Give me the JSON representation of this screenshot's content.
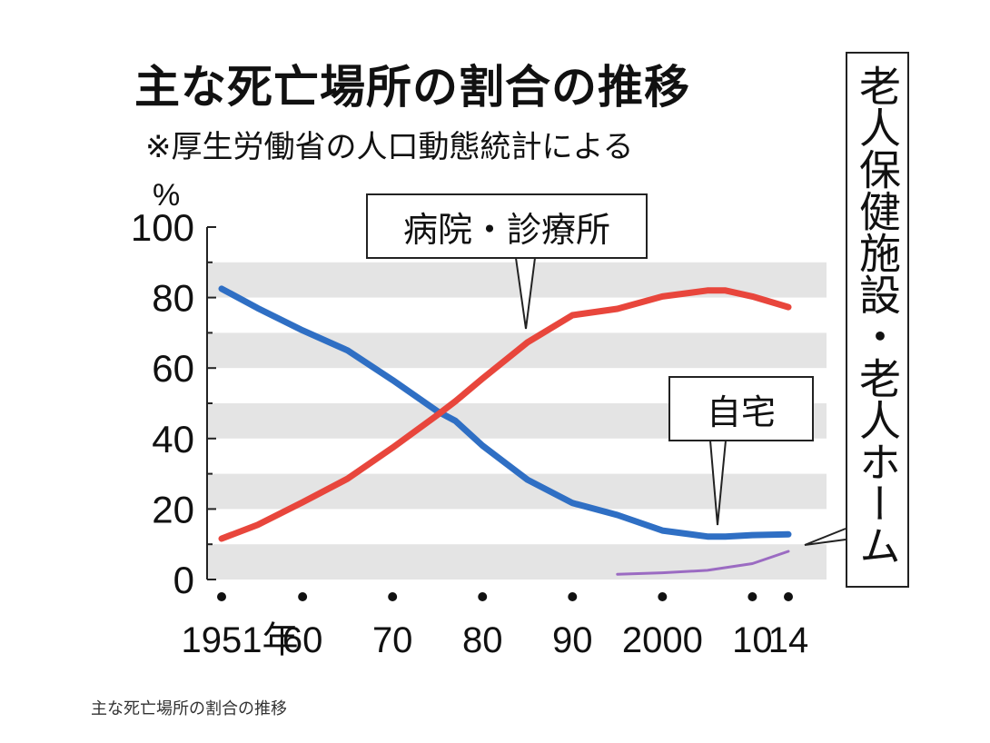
{
  "title": "主な死亡場所の割合の推移",
  "subtitle": "※厚生労働省の人口動態統計による",
  "caption": "主な死亡場所の割合の推移",
  "chart_data": {
    "type": "line",
    "ylabel": "%",
    "ylim": [
      0,
      100
    ],
    "y_ticks": [
      "0",
      "20",
      "40",
      "60",
      "80",
      "100"
    ],
    "x_range": [
      1951,
      2014
    ],
    "x_ticks": [
      {
        "value": 1951,
        "label": "1951年"
      },
      {
        "value": 1960,
        "label": "60"
      },
      {
        "value": 1970,
        "label": "70"
      },
      {
        "value": 1980,
        "label": "80"
      },
      {
        "value": 1990,
        "label": "90"
      },
      {
        "value": 2000,
        "label": "2000"
      },
      {
        "value": 2010,
        "label": "10"
      },
      {
        "value": 2014,
        "label": "14"
      }
    ],
    "grid": "alternating horizontal gray bands",
    "series": [
      {
        "name": "病院・診療所",
        "color": "#e8463c",
        "x": [
          1951,
          1955,
          1960,
          1965,
          1970,
          1975,
          1977,
          1980,
          1985,
          1990,
          1995,
          2000,
          2005,
          2007,
          2010,
          2014
        ],
        "values": [
          11.6,
          15.5,
          21.9,
          28.6,
          37.4,
          46.7,
          50.6,
          57.0,
          67.3,
          75.0,
          76.8,
          80.3,
          82.0,
          82.0,
          80.3,
          77.3
        ]
      },
      {
        "name": "自宅",
        "color": "#2f6fc4",
        "x": [
          1951,
          1955,
          1960,
          1965,
          1970,
          1975,
          1977,
          1980,
          1985,
          1990,
          1995,
          2000,
          2005,
          2007,
          2010,
          2014
        ],
        "values": [
          82.5,
          77.0,
          70.7,
          65.0,
          56.6,
          47.7,
          45.0,
          38.0,
          28.3,
          21.7,
          18.3,
          13.9,
          12.2,
          12.2,
          12.6,
          12.8
        ]
      },
      {
        "name": "老人保健施設・老人ホーム",
        "color": "#9b6bc2",
        "x": [
          1995,
          2000,
          2005,
          2010,
          2014
        ],
        "values": [
          1.5,
          1.9,
          2.6,
          4.5,
          8.0
        ]
      }
    ],
    "labels": {
      "hospital": "病院・診療所",
      "home": "自宅",
      "facility": "老人保健施設・老人ホーム"
    }
  }
}
